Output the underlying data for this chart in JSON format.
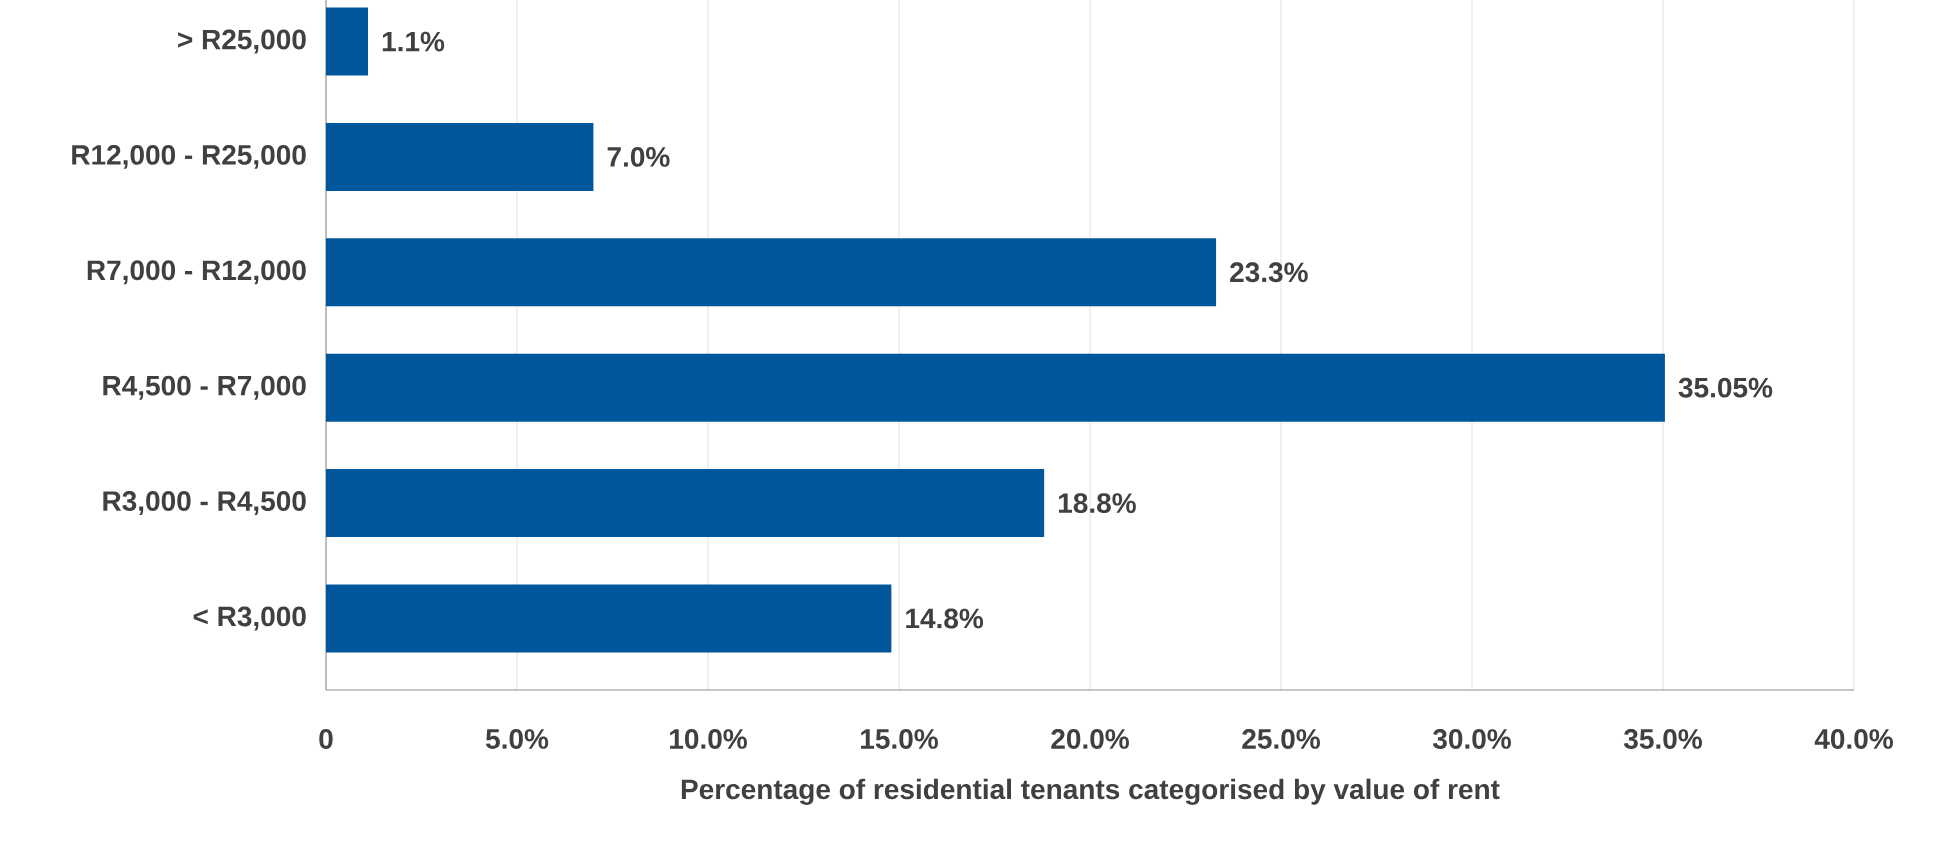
{
  "chart_data": {
    "type": "bar",
    "orientation": "horizontal",
    "xlabel": "Percentage of residential tenants categorised by value of rent",
    "categories": [
      "> R25,000",
      "R12,000 - R25,000",
      "R7,000 - R12,000",
      "R4,500 - R7,000",
      "R3,000 - R4,500",
      "< R3,000"
    ],
    "values": [
      1.1,
      7.0,
      23.3,
      35.05,
      18.8,
      14.8
    ],
    "value_labels": [
      "1.1%",
      "7.0%",
      "23.3%",
      "35.05%",
      "18.8%",
      "14.8%"
    ],
    "color": "#00579b",
    "xlim": [
      0,
      40
    ],
    "xticks": [
      0,
      {
        "value": 5,
        "label": "5.0%"
      },
      {
        "value": 10,
        "label": "10.0%"
      },
      {
        "value": 15,
        "label": "15.0%"
      },
      {
        "value": 20,
        "label": "20.0%"
      },
      {
        "value": 25,
        "label": "25.0%"
      },
      {
        "value": 30,
        "label": "30.0%"
      },
      {
        "value": 35,
        "label": "35.0%"
      },
      {
        "value": 40,
        "label": "40.0%"
      }
    ],
    "grid": "x"
  }
}
